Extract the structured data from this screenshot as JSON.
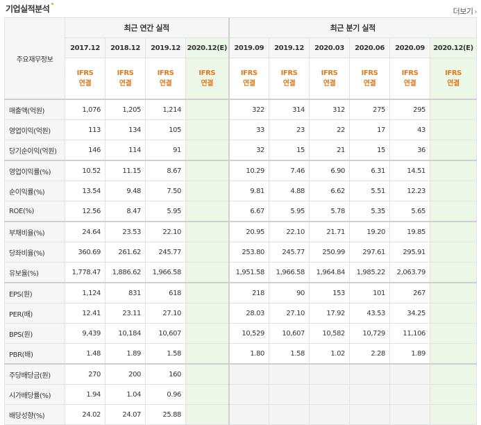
{
  "header": {
    "title": "기업실적분석",
    "more_label": "더보기",
    "more_arrow": "›"
  },
  "table": {
    "corner_label": "주요재무정보",
    "annual_group": "최근 연간 실적",
    "quarter_group": "최근 분기 실적",
    "annual_periods": [
      "2017.12",
      "2018.12",
      "2019.12",
      "2020.12(E)"
    ],
    "quarter_periods": [
      "2019.09",
      "2019.12",
      "2020.03",
      "2020.06",
      "2020.09",
      "2020.12(E)"
    ],
    "basis_line1": "IFRS",
    "basis_line2": "연결",
    "rows": [
      {
        "label": "매출액(억원)",
        "annual": [
          "1,076",
          "1,205",
          "1,214",
          ""
        ],
        "quarter": [
          "322",
          "314",
          "312",
          "275",
          "295",
          ""
        ]
      },
      {
        "label": "영업이익(억원)",
        "annual": [
          "113",
          "134",
          "105",
          ""
        ],
        "quarter": [
          "33",
          "23",
          "22",
          "17",
          "43",
          ""
        ]
      },
      {
        "label": "당기순이익(억원)",
        "annual": [
          "146",
          "114",
          "91",
          ""
        ],
        "quarter": [
          "32",
          "15",
          "21",
          "15",
          "36",
          ""
        ]
      },
      {
        "label": "영업이익률(%)",
        "annual": [
          "10.52",
          "11.15",
          "8.67",
          ""
        ],
        "quarter": [
          "10.29",
          "7.46",
          "6.90",
          "6.31",
          "14.51",
          ""
        ]
      },
      {
        "label": "순이익률(%)",
        "annual": [
          "13.54",
          "9.48",
          "7.50",
          ""
        ],
        "quarter": [
          "9.81",
          "4.88",
          "6.62",
          "5.51",
          "12.23",
          ""
        ]
      },
      {
        "label": "ROE(%)",
        "annual": [
          "12.56",
          "8.47",
          "5.95",
          ""
        ],
        "quarter": [
          "6.67",
          "5.95",
          "5.78",
          "5.35",
          "5.65",
          ""
        ]
      },
      {
        "label": "부채비율(%)",
        "annual": [
          "24.64",
          "23.53",
          "22.10",
          ""
        ],
        "quarter": [
          "20.95",
          "22.10",
          "21.71",
          "19.20",
          "19.85",
          ""
        ]
      },
      {
        "label": "당좌비율(%)",
        "annual": [
          "360.69",
          "261.62",
          "245.77",
          ""
        ],
        "quarter": [
          "253.80",
          "245.77",
          "250.99",
          "297.61",
          "295.91",
          ""
        ]
      },
      {
        "label": "유보율(%)",
        "annual": [
          "1,778.47",
          "1,886.62",
          "1,966.58",
          ""
        ],
        "quarter": [
          "1,951.58",
          "1,966.58",
          "1,964.84",
          "1,985.22",
          "2,063.79",
          ""
        ]
      },
      {
        "label": "EPS(원)",
        "annual": [
          "1,124",
          "831",
          "618",
          ""
        ],
        "quarter": [
          "218",
          "90",
          "153",
          "101",
          "267",
          ""
        ]
      },
      {
        "label": "PER(배)",
        "annual": [
          "12.41",
          "23.11",
          "27.10",
          ""
        ],
        "quarter": [
          "28.03",
          "27.10",
          "17.92",
          "43.53",
          "34.25",
          ""
        ]
      },
      {
        "label": "BPS(원)",
        "annual": [
          "9,439",
          "10,184",
          "10,607",
          ""
        ],
        "quarter": [
          "10,529",
          "10,607",
          "10,582",
          "10,729",
          "11,106",
          ""
        ]
      },
      {
        "label": "PBR(배)",
        "annual": [
          "1.48",
          "1.89",
          "1.58",
          ""
        ],
        "quarter": [
          "1.80",
          "1.58",
          "1.02",
          "2.28",
          "1.89",
          ""
        ]
      },
      {
        "label": "주당배당금(원)",
        "annual": [
          "270",
          "200",
          "160",
          ""
        ],
        "quarter": [
          "",
          "",
          "",
          "",
          "",
          ""
        ]
      },
      {
        "label": "시가배당률(%)",
        "annual": [
          "1.94",
          "1.04",
          "0.96",
          ""
        ],
        "quarter": [
          "",
          "",
          "",
          "",
          "",
          ""
        ]
      },
      {
        "label": "배당성향(%)",
        "annual": [
          "24.02",
          "24.07",
          "25.88",
          ""
        ],
        "quarter": [
          "",
          "",
          "",
          "",
          "",
          ""
        ]
      }
    ]
  },
  "colors": {
    "basis_orange": "#e0791b",
    "estimate_bg": "#edf7e8",
    "header_bg": "#f6f6f6",
    "empty_bg": "#f5f5f5"
  }
}
